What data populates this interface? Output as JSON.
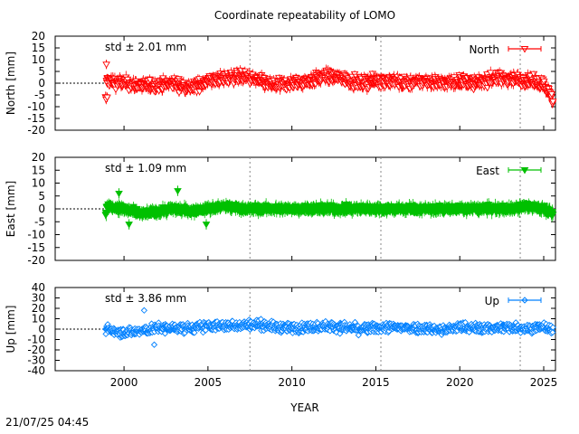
{
  "title": "Coordinate repeatability of LOMO",
  "timestamp": "21/07/25 04:45",
  "xlabel": "YEAR",
  "x_ticks": [
    "2000",
    "2005",
    "2010",
    "2015",
    "2020",
    "2025"
  ],
  "colors": {
    "north": "#ff0000",
    "east": "#00c000",
    "up": "#0080ff"
  },
  "chart_data": [
    {
      "type": "scatter",
      "id": "north",
      "ylabel": "North [mm]",
      "legend": "North",
      "legend_placement": "top-right",
      "std_text": "std ± 2.01 mm",
      "marker": "triangle-down-open",
      "xlim": [
        1995.9,
        2025.7
      ],
      "ylim": [
        -20,
        20
      ],
      "yticks": [
        "20",
        "15",
        "10",
        "5",
        "0",
        "-5",
        "-10",
        "-15",
        "-20"
      ],
      "grid_x": [
        2007.5,
        2015.3,
        2023.6
      ],
      "zero_line_x_range": [
        1995.9,
        1998.9
      ],
      "data_range_x": [
        1998.9,
        2025.55
      ],
      "series": [
        {
          "name": "North",
          "x": [
            1998.95,
            2000,
            2001,
            2002,
            2003,
            2004,
            2005,
            2006,
            2007,
            2008,
            2009,
            2010,
            2011,
            2012,
            2013,
            2014,
            2015,
            2016,
            2017,
            2018,
            2019,
            2020,
            2021,
            2022,
            2023,
            2024,
            2025,
            2025.5
          ],
          "y": [
            1,
            0,
            -1,
            -1,
            0,
            -2,
            1,
            2,
            3,
            1,
            -1,
            0,
            1,
            3,
            2,
            0,
            1,
            1,
            0,
            1,
            0,
            1,
            0,
            2,
            2,
            1,
            0,
            -7
          ]
        }
      ]
    },
    {
      "type": "scatter",
      "id": "east",
      "ylabel": "East [mm]",
      "legend": "East",
      "legend_placement": "top-right",
      "std_text": "std ± 1.09 mm",
      "marker": "triangle-down-filled",
      "xlim": [
        1995.9,
        2025.7
      ],
      "ylim": [
        -20,
        20
      ],
      "yticks": [
        "20",
        "15",
        "10",
        "5",
        "0",
        "-5",
        "-10",
        "-15",
        "-20"
      ],
      "grid_x": [
        2007.5,
        2015.3,
        2023.6
      ],
      "zero_line_x_range": [
        1995.9,
        1998.9
      ],
      "data_range_x": [
        1998.9,
        2025.55
      ],
      "series": [
        {
          "name": "East",
          "x": [
            1998.95,
            2000,
            2001,
            2002,
            2003,
            2004,
            2005,
            2006,
            2007,
            2008,
            2009,
            2010,
            2011,
            2012,
            2013,
            2014,
            2015,
            2016,
            2017,
            2018,
            2019,
            2020,
            2021,
            2022,
            2023,
            2024,
            2025,
            2025.5
          ],
          "y": [
            1,
            0,
            -2,
            -1,
            0,
            -1,
            0,
            1,
            0,
            0,
            0,
            0,
            0,
            0,
            0,
            0,
            0,
            0,
            0,
            0,
            0,
            0,
            0,
            0,
            0,
            1,
            0,
            -2
          ]
        }
      ]
    },
    {
      "type": "scatter",
      "id": "up",
      "ylabel": "Up [mm]",
      "legend": "Up",
      "legend_placement": "top-right",
      "std_text": "std ± 3.86 mm",
      "marker": "diamond-open",
      "xlim": [
        1995.9,
        2025.7
      ],
      "ylim": [
        -40,
        40
      ],
      "yticks": [
        "40",
        "30",
        "20",
        "10",
        "0",
        "-10",
        "-20",
        "-30",
        "-40"
      ],
      "grid_x": [
        2007.5,
        2015.3,
        2023.6
      ],
      "zero_line_x_range": [
        1995.9,
        1998.9
      ],
      "data_range_x": [
        1998.9,
        2025.55
      ],
      "series": [
        {
          "name": "Up",
          "x": [
            1998.95,
            2000,
            2001,
            2002,
            2003,
            2004,
            2005,
            2006,
            2007,
            2008,
            2009,
            2010,
            2011,
            2012,
            2013,
            2014,
            2015,
            2016,
            2017,
            2018,
            2019,
            2020,
            2021,
            2022,
            2023,
            2024,
            2025,
            2025.5
          ],
          "y": [
            0,
            -3,
            -2,
            1,
            1,
            1,
            3,
            3,
            4,
            5,
            2,
            1,
            2,
            3,
            2,
            0,
            1,
            2,
            1,
            1,
            -1,
            2,
            1,
            1,
            2,
            1,
            2,
            -1
          ]
        }
      ]
    }
  ]
}
